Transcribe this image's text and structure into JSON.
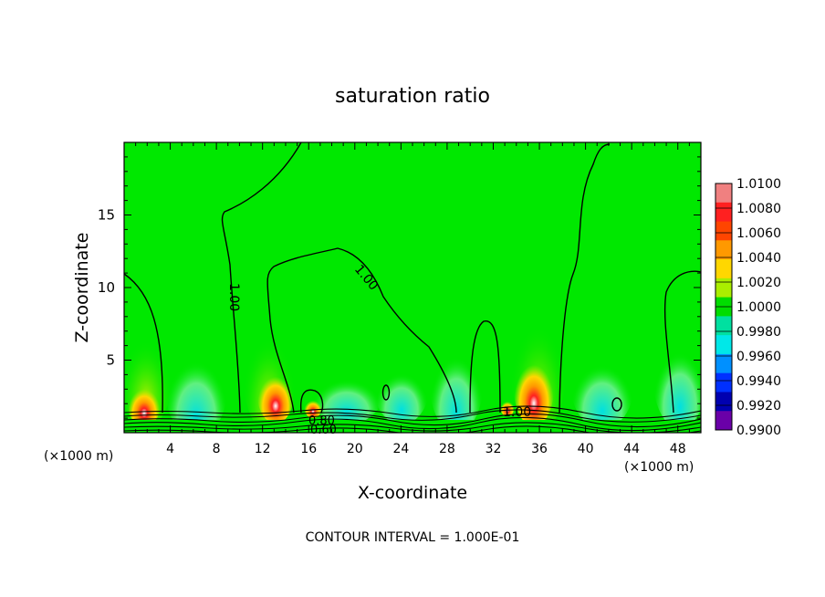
{
  "chart_data": {
    "type": "heatmap",
    "title": "saturation ratio",
    "xlabel": "X-coordinate",
    "ylabel": "Z-coordinate",
    "x_unit": "(×1000 m)",
    "x_unit_right": "(×1000 m)",
    "xlim": [
      0,
      50
    ],
    "ylim": [
      0,
      20
    ],
    "x_ticks": [
      4,
      8,
      12,
      16,
      20,
      24,
      28,
      32,
      36,
      40,
      44,
      48
    ],
    "y_ticks": [
      5,
      10,
      15
    ],
    "footer": "CONTOUR INTERVAL = 1.000E-01",
    "colorbar": {
      "levels": [
        "1.0100",
        "1.0080",
        "1.0060",
        "1.0040",
        "1.0020",
        "1.0000",
        "0.9980",
        "0.9960",
        "0.9940",
        "0.9920",
        "0.9900"
      ],
      "colors": [
        "#f08080",
        "#ff2020",
        "#ff4500",
        "#ff9900",
        "#ffd700",
        "#aaee00",
        "#00dd00",
        "#00e0a0",
        "#00e8e8",
        "#0090ff",
        "#0030ff",
        "#0000b0",
        "#6a00a8"
      ]
    },
    "contour_labels": [
      {
        "text": "1.00",
        "x": 9.4,
        "z": 9.0
      },
      {
        "text": "1.00",
        "x": 21.0,
        "z": 10.5
      },
      {
        "text": "1.00",
        "x": 34.5,
        "z": 1.2
      },
      {
        "text": "0.80",
        "x": 17.5,
        "z": 0.7
      },
      {
        "text": "0.60",
        "x": 18.0,
        "z": 0.2
      }
    ],
    "background_color": "#00e800"
  }
}
